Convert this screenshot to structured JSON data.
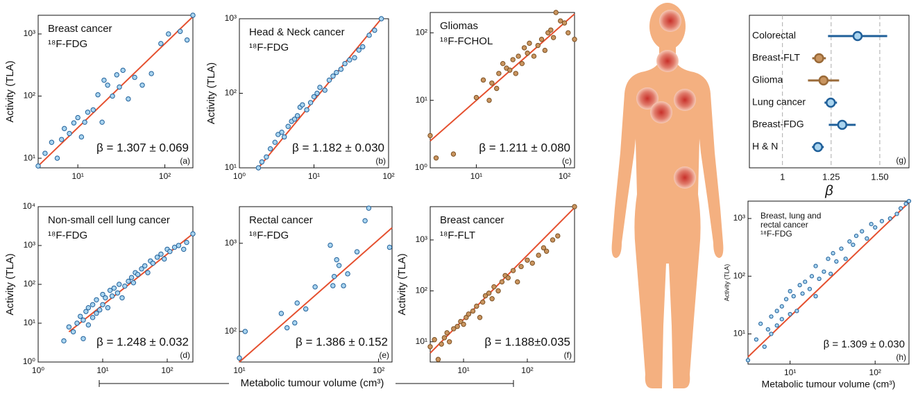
{
  "chart_data": [
    {
      "type": "scatter",
      "title": "Breast cancer",
      "subtitle": "¹⁸F-FDG",
      "ylabel": "Activity (TLA)",
      "annotation": "β = 1.307 ± 0.069",
      "panel": "(a)",
      "x": [
        3.5,
        4.2,
        5,
        5.8,
        6.5,
        7,
        8,
        9,
        10,
        11,
        12,
        13,
        15,
        17,
        19,
        20,
        22,
        25,
        28,
        30,
        33,
        38,
        45,
        55,
        70,
        90,
        110,
        150,
        180,
        210
      ],
      "y": [
        7.5,
        12,
        18,
        10,
        20,
        30,
        25,
        37,
        45,
        22,
        38,
        55,
        60,
        105,
        38,
        180,
        150,
        100,
        220,
        140,
        260,
        90,
        200,
        150,
        230,
        700,
        1000,
        1100,
        800,
        2000
      ],
      "fit": {
        "x": [
          3.5,
          210
        ],
        "y": [
          7.5,
          1900
        ]
      },
      "xlim": [
        3.5,
        210
      ],
      "ylim": [
        7,
        2000
      ],
      "log_x": true,
      "log_y": true,
      "xticks": [
        {
          "value": 10,
          "label": "10¹"
        },
        {
          "value": 100,
          "label": "10²"
        }
      ],
      "yticks": [
        {
          "value": 10,
          "label": "10¹"
        },
        {
          "value": 100,
          "label": "10²"
        },
        {
          "value": 1000,
          "label": "10³"
        }
      ],
      "color": "#a9d4ef",
      "edgecolor": "#1f5f99",
      "fit_color": "#e5502f"
    },
    {
      "type": "scatter",
      "title": "Head & Neck cancer",
      "subtitle": "¹⁸F-FDG",
      "ylabel": "Activity (TLA)",
      "annotation": "β = 1.182 ± 0.030",
      "panel": "(b)",
      "x": [
        1.8,
        2,
        2.3,
        2.6,
        3,
        3.3,
        3.7,
        4,
        4.5,
        5,
        5.5,
        6,
        6.5,
        7,
        8,
        9,
        10,
        11,
        12,
        14,
        16,
        18,
        20,
        23,
        26,
        30,
        35,
        40,
        45,
        55,
        65,
        80
      ],
      "y": [
        10,
        12,
        14,
        18,
        22,
        28,
        30,
        26,
        36,
        42,
        45,
        50,
        65,
        70,
        60,
        75,
        90,
        100,
        120,
        110,
        150,
        170,
        190,
        210,
        250,
        280,
        300,
        380,
        420,
        600,
        700,
        1000
      ],
      "fit": {
        "x": [
          1.8,
          80
        ],
        "y": [
          10,
          1000
        ]
      },
      "xlim": [
        1,
        100
      ],
      "ylim": [
        10,
        1000
      ],
      "log_x": true,
      "log_y": true,
      "xticks": [
        {
          "value": 1,
          "label": "10⁰"
        },
        {
          "value": 10,
          "label": "10¹"
        },
        {
          "value": 100,
          "label": "10²"
        }
      ],
      "yticks": [
        {
          "value": 10,
          "label": "10¹"
        },
        {
          "value": 100,
          "label": "10²"
        },
        {
          "value": 1000,
          "label": "10³"
        }
      ],
      "color": "#a9d4ef",
      "edgecolor": "#1f5f99",
      "fit_color": "#e5502f"
    },
    {
      "type": "scatter",
      "title": "Gliomas",
      "subtitle": "¹⁸F-FCHOL",
      "annotation": "β = 1.211 ± 0.080",
      "panel": "(c)",
      "x": [
        3,
        3.5,
        5.5,
        10,
        12,
        14,
        15,
        17,
        18,
        20,
        22,
        24,
        26,
        28,
        30,
        33,
        35,
        38,
        40,
        45,
        50,
        55,
        60,
        65,
        70,
        75,
        80,
        90,
        100,
        110,
        130
      ],
      "y": [
        3,
        1.4,
        1.6,
        11,
        20,
        10,
        18,
        15,
        25,
        35,
        30,
        28,
        40,
        25,
        45,
        35,
        60,
        50,
        70,
        45,
        65,
        80,
        55,
        100,
        110,
        85,
        200,
        150,
        140,
        100,
        80
      ],
      "fit": {
        "x": [
          3,
          130
        ],
        "y": [
          2.5,
          190
        ]
      },
      "xlim": [
        3,
        130
      ],
      "ylim": [
        1,
        200
      ],
      "log_x": true,
      "log_y": true,
      "xticks": [
        {
          "value": 10,
          "label": "10¹"
        },
        {
          "value": 100,
          "label": "10²"
        }
      ],
      "yticks": [
        {
          "value": 1,
          "label": "10⁰"
        },
        {
          "value": 10,
          "label": "10¹"
        },
        {
          "value": 100,
          "label": "10²"
        }
      ],
      "color": "#c99560",
      "edgecolor": "#7a4f22",
      "fit_color": "#e5502f"
    },
    {
      "type": "scatter",
      "title": "Non-small cell lung cancer",
      "subtitle": "¹⁸F-FDG",
      "ylabel": "Activity (TLA)",
      "annotation": "β = 1.248 ± 0.032",
      "panel": "(d)",
      "x": [
        2.5,
        3,
        3.5,
        4,
        4.5,
        5,
        5,
        5.5,
        6,
        6,
        7,
        7,
        8,
        8,
        9,
        10,
        10,
        11,
        12,
        13,
        14,
        15,
        17,
        18,
        20,
        22,
        25,
        28,
        30,
        32,
        35,
        40,
        45,
        50,
        55,
        60,
        70,
        80,
        90,
        100,
        110,
        130,
        150,
        180,
        200,
        250
      ],
      "y": [
        3.5,
        8,
        6,
        10,
        15,
        4,
        12,
        20,
        9,
        25,
        14,
        30,
        18,
        40,
        22,
        30,
        55,
        45,
        25,
        70,
        50,
        80,
        60,
        100,
        45,
        90,
        120,
        150,
        110,
        200,
        180,
        250,
        300,
        200,
        400,
        350,
        500,
        600,
        450,
        800,
        700,
        900,
        1000,
        800,
        1200,
        2000
      ],
      "fit": {
        "x": [
          3,
          250
        ],
        "y": [
          6,
          2000
        ]
      },
      "xlim": [
        1,
        250
      ],
      "ylim": [
        1,
        10000
      ],
      "log_x": true,
      "log_y": true,
      "xticks": [
        {
          "value": 1,
          "label": "10⁰"
        },
        {
          "value": 10,
          "label": "10¹"
        },
        {
          "value": 100,
          "label": "10²"
        }
      ],
      "yticks": [
        {
          "value": 1,
          "label": "10⁰"
        },
        {
          "value": 10,
          "label": "10¹"
        },
        {
          "value": 100,
          "label": "10²"
        },
        {
          "value": 1000,
          "label": "10³"
        },
        {
          "value": 10000,
          "label": "10⁴"
        }
      ],
      "color": "#a9d4ef",
      "edgecolor": "#1f5f99",
      "fit_color": "#e5502f"
    },
    {
      "type": "scatter",
      "title": "Rectal cancer",
      "subtitle": "¹⁸F-FDG",
      "annotation": "β = 1.386 ± 0.152",
      "panel": "(e)",
      "x": [
        10,
        11,
        20,
        22,
        25,
        26,
        30,
        35,
        45,
        47,
        48,
        50,
        52,
        56,
        60,
        70,
        80,
        85,
        120
      ],
      "y": [
        50,
        100,
        160,
        110,
        125,
        210,
        180,
        320,
        950,
        330,
        420,
        650,
        560,
        330,
        450,
        800,
        1800,
        2500,
        900
      ],
      "fit": {
        "x": [
          10,
          125
        ],
        "y": [
          45,
          1500
        ]
      },
      "xlim": [
        10,
        125
      ],
      "ylim": [
        45,
        2600
      ],
      "log_x": true,
      "log_y": true,
      "xticks": [
        {
          "value": 10,
          "label": "10¹"
        },
        {
          "value": 100,
          "label": "10²"
        }
      ],
      "yticks": [
        {
          "value": 100,
          "label": "10²"
        },
        {
          "value": 1000,
          "label": "10³"
        }
      ],
      "color": "#a9d4ef",
      "edgecolor": "#1f5f99",
      "fit_color": "#e5502f"
    },
    {
      "type": "scatter",
      "title": "Breast cancer",
      "subtitle": "¹⁸F-FLT",
      "ylabel": "Activity (TLA)",
      "annotation": "β = 1.188±0.035",
      "panel": "(f)",
      "x": [
        3,
        3.5,
        4,
        4.5,
        5,
        5.5,
        6,
        7,
        8,
        9,
        10,
        11,
        12,
        14,
        16,
        18,
        20,
        22,
        25,
        28,
        30,
        35,
        40,
        45,
        50,
        60,
        70,
        80,
        100,
        120,
        150,
        180,
        200,
        250,
        300,
        550
      ],
      "y": [
        8,
        11,
        4.5,
        9,
        12,
        15,
        10,
        18,
        20,
        25,
        22,
        30,
        35,
        40,
        50,
        30,
        60,
        80,
        90,
        70,
        120,
        100,
        150,
        200,
        180,
        250,
        150,
        300,
        400,
        350,
        500,
        700,
        600,
        1000,
        1200,
        4500
      ],
      "fit": {
        "x": [
          3,
          550
        ],
        "y": [
          6,
          4300
        ]
      },
      "xlim": [
        3,
        550
      ],
      "ylim": [
        4,
        4500
      ],
      "log_x": true,
      "log_y": true,
      "xticks": [
        {
          "value": 10,
          "label": "10¹"
        },
        {
          "value": 100,
          "label": "10²"
        }
      ],
      "yticks": [
        {
          "value": 10,
          "label": "10¹"
        },
        {
          "value": 100,
          "label": "10²"
        },
        {
          "value": 1000,
          "label": "10³"
        }
      ],
      "color": "#c99560",
      "edgecolor": "#7a4f22",
      "fit_color": "#e5502f"
    },
    {
      "type": "forest",
      "xlabel": "β",
      "panel": "(g)",
      "categories": [
        "Colorectal",
        "Breast-FLT",
        "Glioma",
        "Lung cancer",
        "Breast-FDG",
        "H & N"
      ],
      "values": [
        1.386,
        1.188,
        1.211,
        1.248,
        1.307,
        1.182
      ],
      "errors": [
        0.152,
        0.035,
        0.08,
        0.032,
        0.069,
        0.03
      ],
      "colors": [
        "#1f5f99",
        "#9a6a38",
        "#9a6a38",
        "#1f5f99",
        "#1f5f99",
        "#1f5f99"
      ],
      "fills": [
        "#a9d4ef",
        "#c99560",
        "#c99560",
        "#a9d4ef",
        "#a9d4ef",
        "#a9d4ef"
      ],
      "xlim": [
        0.83,
        1.65
      ],
      "xticks": [
        1,
        1.25,
        {
          "value": 1.5,
          "label": "1.50"
        }
      ],
      "grid": true
    },
    {
      "type": "scatter",
      "title": [
        "Breast, lung and",
        "rectal cancer"
      ],
      "subtitle": "¹⁸F-FDG",
      "ylabel": "Activity (TLA)",
      "xlabel": "Metabolic tumour volume (cm³)",
      "annotation": "β = 1.309 ± 0.030",
      "panel": "(h)",
      "x": [
        3.2,
        4,
        4.5,
        5,
        5.5,
        6,
        6,
        7,
        7,
        8,
        8,
        9,
        10,
        10,
        11,
        12,
        13,
        14,
        15,
        17,
        18,
        20,
        20,
        22,
        25,
        28,
        30,
        32,
        35,
        40,
        45,
        50,
        55,
        60,
        70,
        80,
        90,
        100,
        120,
        150,
        180,
        200,
        230,
        250
      ],
      "y": [
        3.5,
        8,
        15,
        6,
        12,
        20,
        10,
        25,
        14,
        30,
        18,
        40,
        22,
        55,
        45,
        25,
        70,
        50,
        80,
        60,
        100,
        45,
        150,
        90,
        120,
        200,
        110,
        250,
        180,
        300,
        200,
        400,
        350,
        500,
        600,
        450,
        800,
        700,
        900,
        1000,
        1200,
        1500,
        1800,
        2000
      ],
      "fit": {
        "x": [
          3.2,
          250
        ],
        "y": [
          4,
          1900
        ]
      },
      "xlim": [
        3.2,
        250
      ],
      "ylim": [
        3,
        2000
      ],
      "log_x": true,
      "log_y": true,
      "xticks": [
        {
          "value": 10,
          "label": "10¹"
        },
        {
          "value": 100,
          "label": "10²"
        }
      ],
      "yticks": [
        {
          "value": 10,
          "label": "10¹"
        },
        {
          "value": 100,
          "label": "10²"
        },
        {
          "value": 1000,
          "label": "10³"
        }
      ],
      "color": "#a9d4ef",
      "edgecolor": "#1f5f99",
      "fit_color": "#e5502f"
    }
  ],
  "xlabel": "Metabolic tumour volume (cm³)"
}
